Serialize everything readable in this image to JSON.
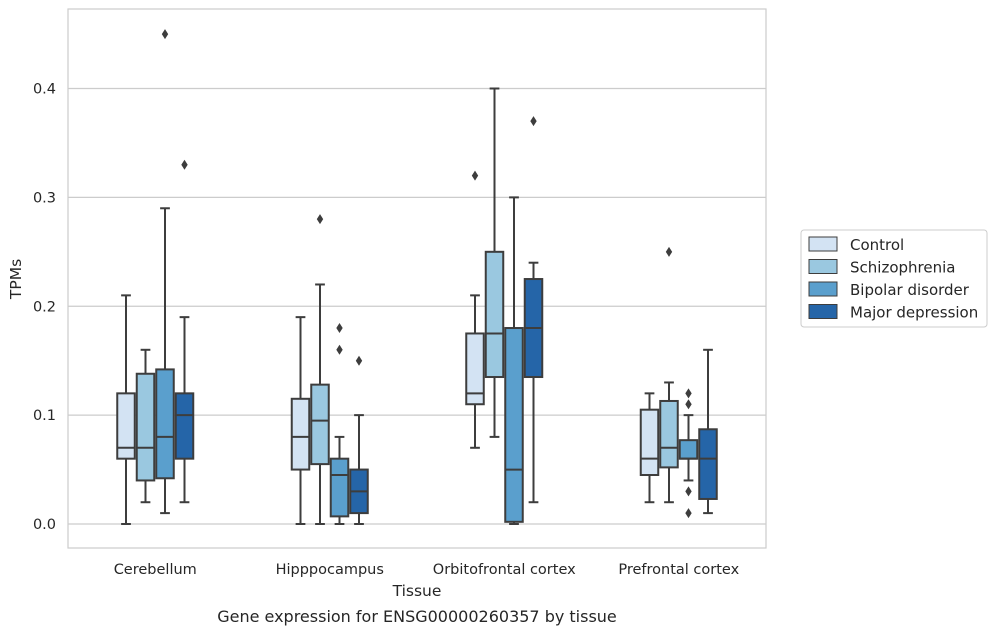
{
  "caption": "Gene expression for ENSG00000260357 by tissue",
  "chart_data": {
    "type": "box",
    "xlabel": "Tissue",
    "ylabel": "TPMs",
    "ylim": [
      -0.022,
      0.475
    ],
    "yticks": [
      "0.0",
      "0.1",
      "0.2",
      "0.3",
      "0.4"
    ],
    "ytick_values": [
      0.0,
      0.1,
      0.2,
      0.3,
      0.4
    ],
    "grid": "horizontal",
    "legend_position": "right",
    "categories": [
      "Cerebellum",
      "Hipppocampus",
      "Orbitofrontal cortex",
      "Prefrontal cortex"
    ],
    "series": [
      {
        "name": "Control",
        "color": "#d3e3f3",
        "boxes": [
          {
            "whislo": 0.0,
            "q1": 0.06,
            "med": 0.07,
            "q3": 0.12,
            "whishi": 0.21,
            "fliers": []
          },
          {
            "whislo": 0.0,
            "q1": 0.05,
            "med": 0.08,
            "q3": 0.115,
            "whishi": 0.19,
            "fliers": []
          },
          {
            "whislo": 0.07,
            "q1": 0.11,
            "med": 0.12,
            "q3": 0.175,
            "whishi": 0.21,
            "fliers": [
              0.32
            ]
          },
          {
            "whislo": 0.02,
            "q1": 0.045,
            "med": 0.06,
            "q3": 0.105,
            "whishi": 0.12,
            "fliers": []
          }
        ]
      },
      {
        "name": "Schizophrenia",
        "color": "#9ac8e0",
        "boxes": [
          {
            "whislo": 0.02,
            "q1": 0.04,
            "med": 0.07,
            "q3": 0.138,
            "whishi": 0.16,
            "fliers": []
          },
          {
            "whislo": 0.0,
            "q1": 0.055,
            "med": 0.095,
            "q3": 0.128,
            "whishi": 0.22,
            "fliers": [
              0.28
            ]
          },
          {
            "whislo": 0.08,
            "q1": 0.135,
            "med": 0.175,
            "q3": 0.25,
            "whishi": 0.4,
            "fliers": []
          },
          {
            "whislo": 0.02,
            "q1": 0.052,
            "med": 0.07,
            "q3": 0.113,
            "whishi": 0.13,
            "fliers": [
              0.25
            ]
          }
        ]
      },
      {
        "name": "Bipolar disorder",
        "color": "#5a9fcd",
        "boxes": [
          {
            "whislo": 0.01,
            "q1": 0.042,
            "med": 0.08,
            "q3": 0.142,
            "whishi": 0.29,
            "fliers": [
              0.45
            ]
          },
          {
            "whislo": 0.0,
            "q1": 0.007,
            "med": 0.045,
            "q3": 0.06,
            "whishi": 0.08,
            "fliers": [
              0.16,
              0.18
            ]
          },
          {
            "whislo": 0.0,
            "q1": 0.002,
            "med": 0.05,
            "q3": 0.18,
            "whishi": 0.3,
            "fliers": []
          },
          {
            "whislo": 0.04,
            "q1": 0.06,
            "med": 0.06,
            "q3": 0.077,
            "whishi": 0.1,
            "fliers": [
              0.01,
              0.03,
              0.11,
              0.12
            ]
          }
        ]
      },
      {
        "name": "Major depression",
        "color": "#2565a8",
        "boxes": [
          {
            "whislo": 0.02,
            "q1": 0.06,
            "med": 0.1,
            "q3": 0.12,
            "whishi": 0.19,
            "fliers": [
              0.33
            ]
          },
          {
            "whislo": 0.0,
            "q1": 0.01,
            "med": 0.03,
            "q3": 0.05,
            "whishi": 0.1,
            "fliers": [
              0.15
            ]
          },
          {
            "whislo": 0.02,
            "q1": 0.135,
            "med": 0.18,
            "q3": 0.225,
            "whishi": 0.24,
            "fliers": [
              0.37
            ]
          },
          {
            "whislo": 0.01,
            "q1": 0.023,
            "med": 0.06,
            "q3": 0.087,
            "whishi": 0.16,
            "fliers": []
          }
        ]
      }
    ]
  }
}
